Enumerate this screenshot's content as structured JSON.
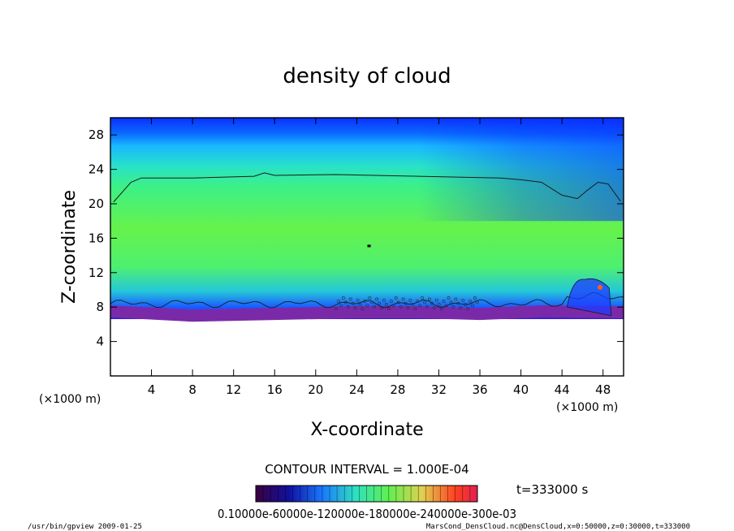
{
  "chart_data": {
    "type": "heatmap",
    "title": "density of cloud",
    "xlabel": "X-coordinate",
    "ylabel": "Z-coordinate",
    "x_unit": "(×1000 m)",
    "y_unit": "(×1000 m)",
    "xlim": [
      0,
      50
    ],
    "ylim": [
      0,
      30
    ],
    "x_ticks": [
      4,
      8,
      12,
      16,
      20,
      24,
      28,
      32,
      36,
      40,
      44,
      48
    ],
    "y_ticks": [
      4,
      8,
      12,
      16,
      20,
      24,
      28
    ],
    "contour_interval_text": "CONTOUR INTERVAL = 1.000E-04",
    "time_text": "t=333000 s",
    "colorbar_labels": "0.10000e-60000e-120000e-180000e-240000e-300e-03",
    "colors": {
      "upper": "#0a3cff",
      "mid": "#3ef07c",
      "core": "#64f250",
      "base": "#7a2aa8",
      "contour": "#1a1a1a"
    },
    "cloud_top_profile": [
      [
        0.3,
        20.2
      ],
      [
        2,
        22.5
      ],
      [
        3,
        23.0
      ],
      [
        8,
        23.0
      ],
      [
        14,
        23.2
      ],
      [
        15,
        23.6
      ],
      [
        16,
        23.3
      ],
      [
        22,
        23.4
      ],
      [
        30,
        23.2
      ],
      [
        38,
        23.0
      ],
      [
        40,
        22.8
      ],
      [
        42,
        22.5
      ],
      [
        44,
        21.0
      ],
      [
        45.5,
        20.6
      ],
      [
        46.5,
        21.6
      ],
      [
        47.5,
        22.5
      ],
      [
        48.5,
        22.3
      ],
      [
        49.7,
        20.3
      ]
    ],
    "cloud_base_profile": [
      [
        0,
        7.3
      ],
      [
        8,
        6.8
      ],
      [
        16,
        7.0
      ],
      [
        24,
        7.2
      ],
      [
        30,
        7.2
      ],
      [
        36,
        7.0
      ],
      [
        42,
        7.3
      ],
      [
        50,
        7.2
      ]
    ]
  },
  "footer": {
    "left": "/usr/bin/gpview   2009-01-25",
    "right": "MarsCond_DensCloud.nc@DensCloud,x=0:50000,z=0:30000,t=333000"
  }
}
